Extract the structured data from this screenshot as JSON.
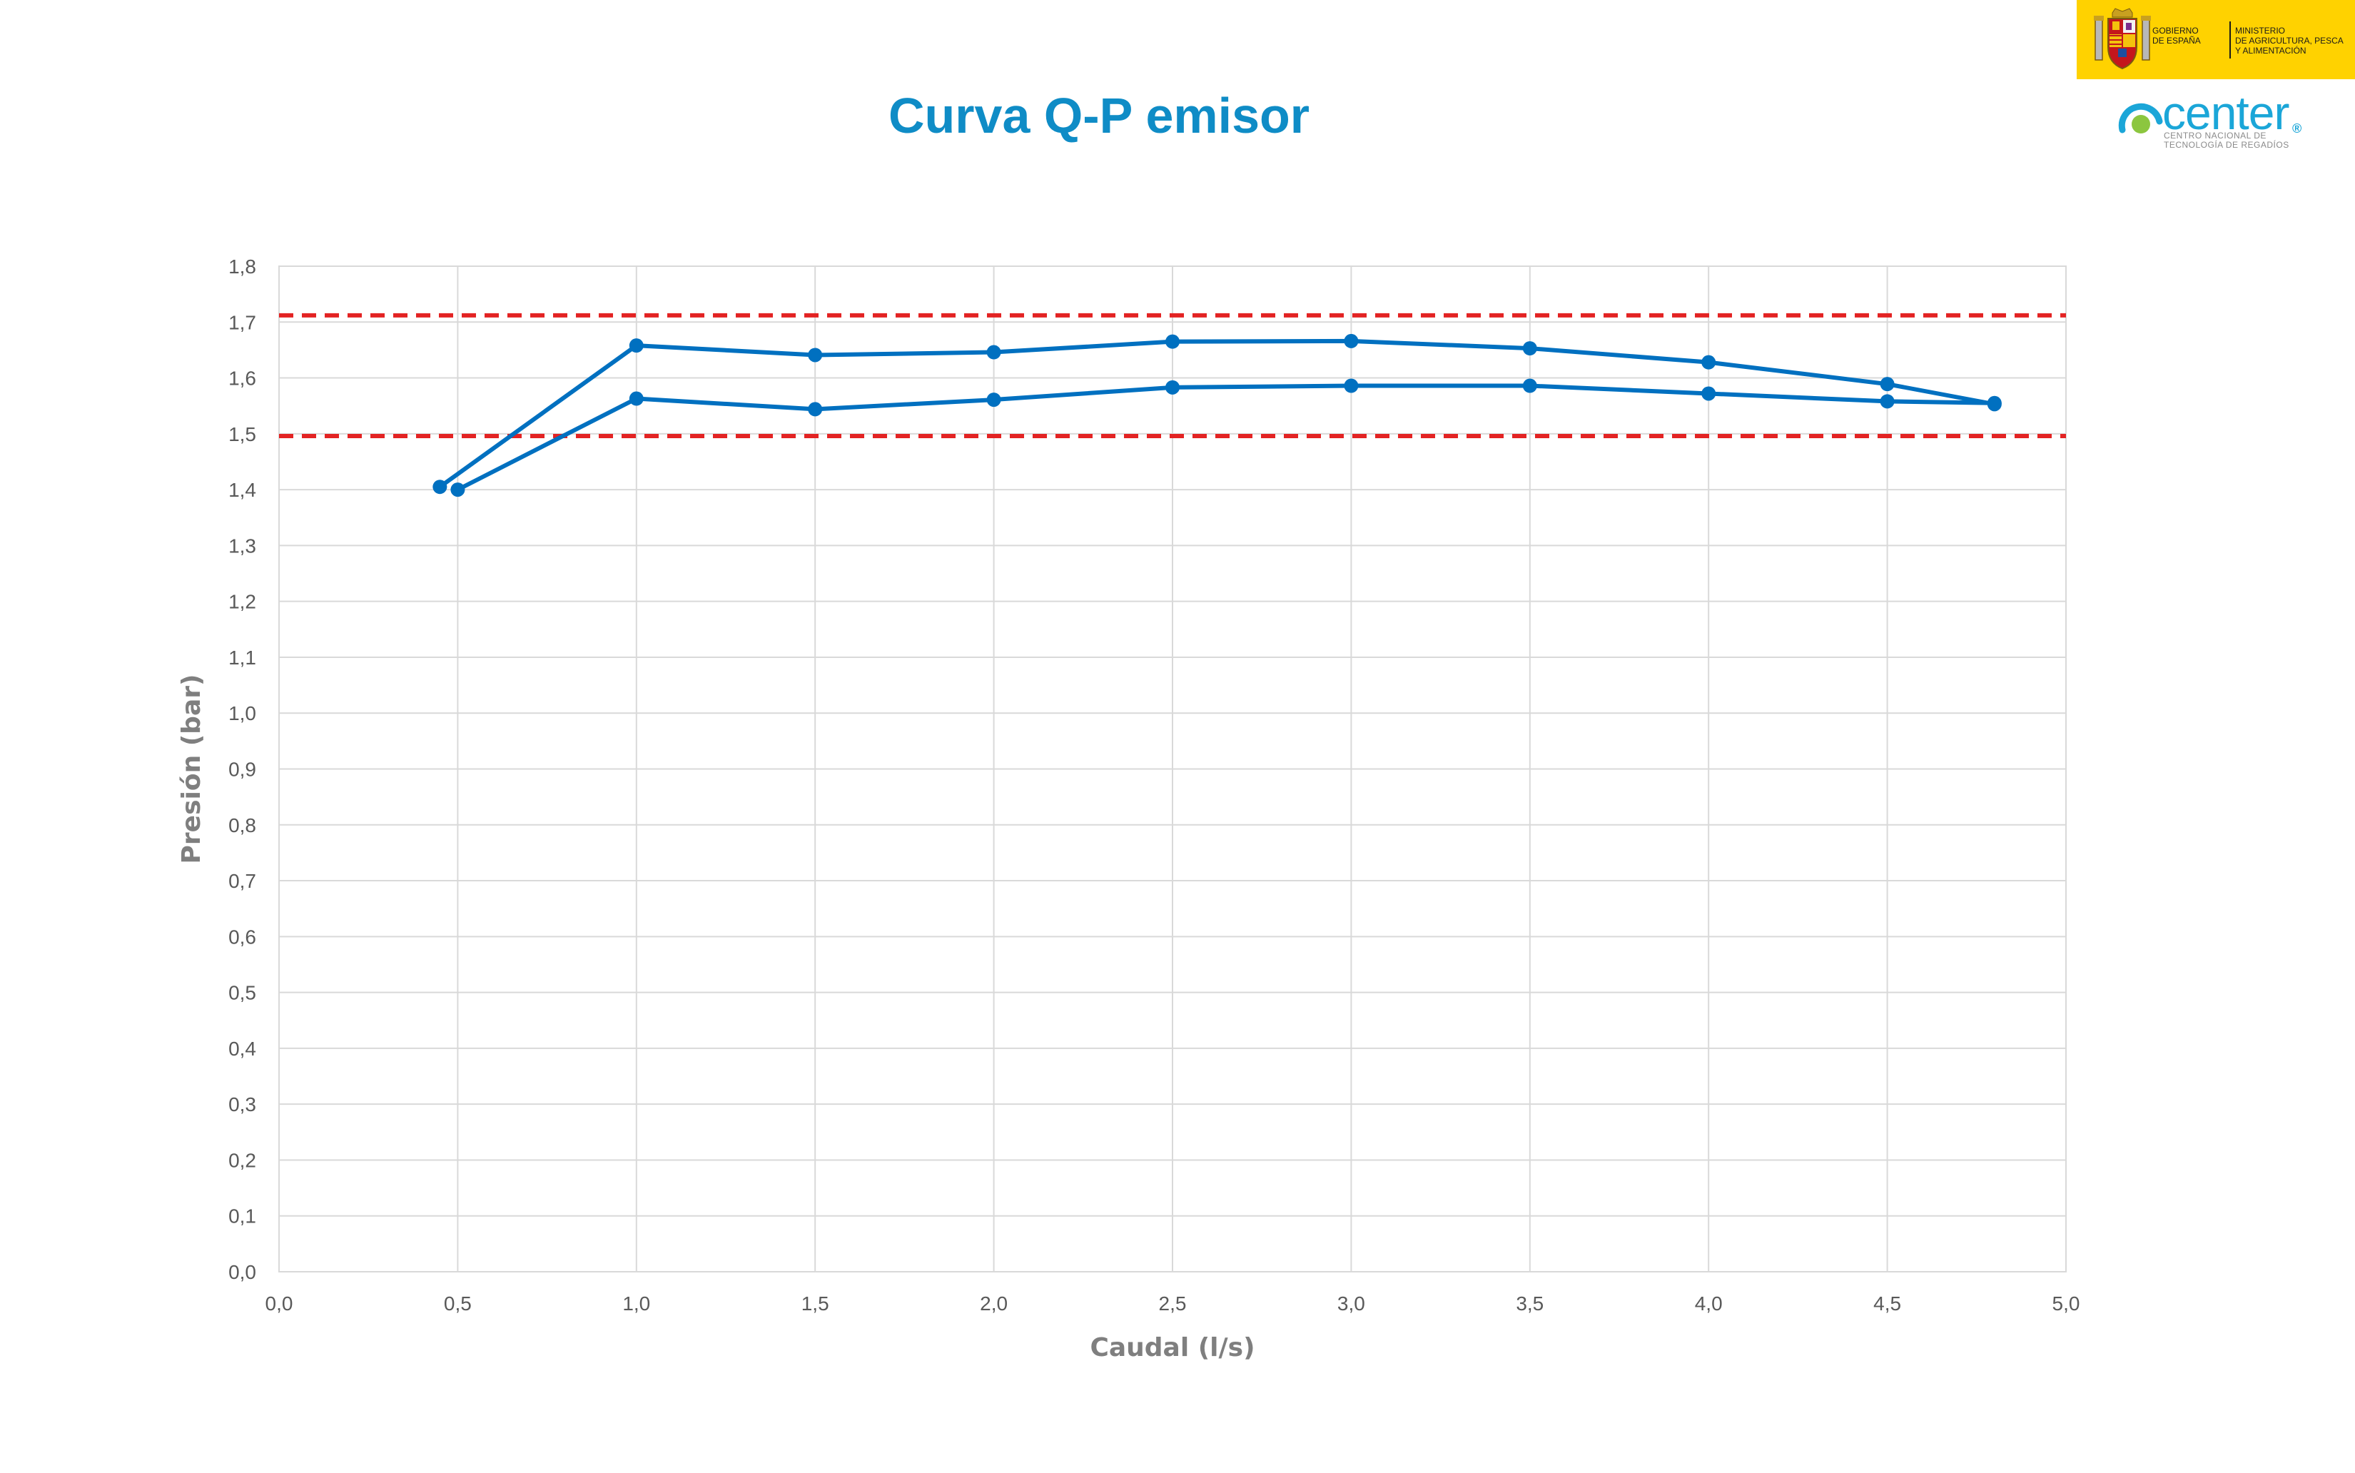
{
  "title": "Curva Q-P emisor",
  "branding": {
    "government": "GOBIERNO\nDE ESPAÑA",
    "ministry": "MINISTERIO\nDE AGRICULTURA, PESCA\nY ALIMENTACIÓN",
    "center_word": "center",
    "center_registered": "®",
    "center_tagline": "CENTRO NACIONAL DE\nTECNOLOGÍA DE REGADÍOS",
    "government_bg": "#FFD200",
    "center_color": "#1BA6D8",
    "crest_icon": "spain-crest-icon"
  },
  "chart_data": {
    "type": "line",
    "title": "Curva Q-P emisor",
    "xlabel": "Caudal (l/s)",
    "ylabel": "Presión (bar)",
    "xlim": [
      0.0,
      5.0
    ],
    "ylim": [
      0.0,
      1.8
    ],
    "x_ticks": [
      "0,0",
      "0,5",
      "1,0",
      "1,5",
      "2,0",
      "2,5",
      "3,0",
      "3,5",
      "4,0",
      "4,5",
      "5,0"
    ],
    "y_ticks": [
      "0,0",
      "0,1",
      "0,2",
      "0,3",
      "0,4",
      "0,5",
      "0,6",
      "0,7",
      "0,8",
      "0,9",
      "1,0",
      "1,1",
      "1,2",
      "1,3",
      "1,4",
      "1,5",
      "1,6",
      "1,7",
      "1,8"
    ],
    "grid": true,
    "series": [
      {
        "color": "#0070C0",
        "x": [
          0.45,
          1.0,
          1.5,
          2.0,
          2.5,
          3.0,
          3.5,
          4.0,
          4.5,
          4.8
        ],
        "y": [
          1.405,
          1.658,
          1.641,
          1.646,
          1.665,
          1.666,
          1.653,
          1.628,
          1.589,
          1.553
        ]
      },
      {
        "color": "#0070C0",
        "x": [
          0.5,
          1.0,
          1.5,
          2.0,
          2.5,
          3.0,
          3.5,
          4.0,
          4.5,
          4.8
        ],
        "y": [
          1.4,
          1.563,
          1.544,
          1.561,
          1.583,
          1.586,
          1.586,
          1.572,
          1.558,
          1.555
        ]
      }
    ],
    "reference_lines": [
      {
        "y": 1.712,
        "color": "#E32323",
        "style": "dashed"
      },
      {
        "y": 1.496,
        "color": "#E32323",
        "style": "dashed"
      }
    ],
    "colors": {
      "title": "#0F8CC6",
      "grid": "#D9D9D9",
      "tick_text": "#595959",
      "axis_title": "#7F7F7F"
    }
  }
}
